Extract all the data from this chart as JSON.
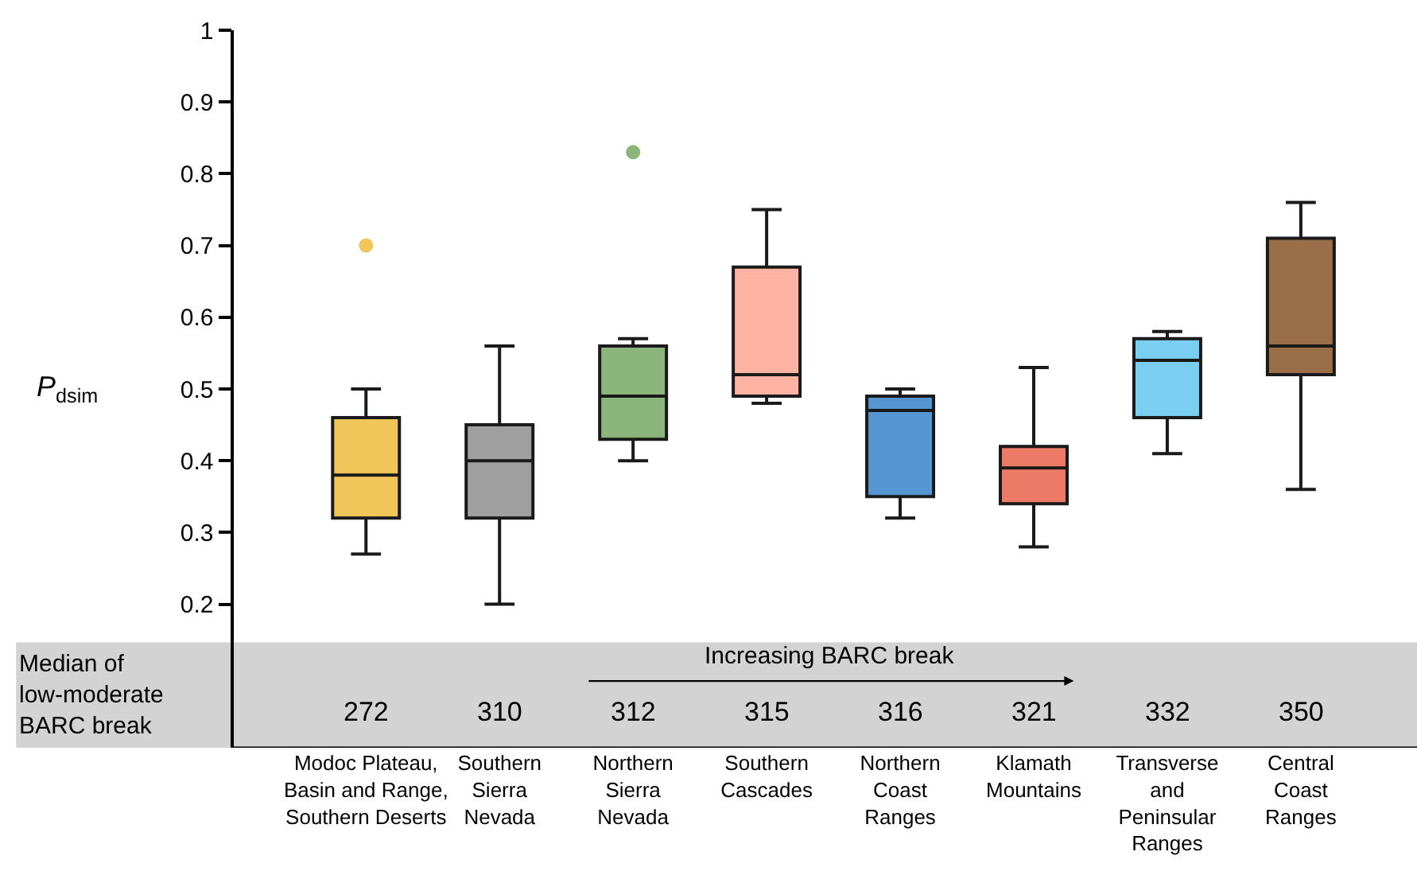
{
  "chart_data": {
    "type": "box",
    "ylabel": "P$_{dsim}$",
    "categories": [
      "Modoc Plateau,\nBasin and Range,\nSouthern Deserts",
      "Southern\nSierra\nNevada",
      "Northern\nSierra\nNevada",
      "Southern\nCascades",
      "Northern\nCoast\nRanges",
      "Klamath\nMountains",
      "Transverse\nand\nPeninsular\nRanges",
      "Central\nCoast\nRanges"
    ],
    "colors": [
      "#f0c55a",
      "#a0a0a0",
      "#8bb57a",
      "#ffb3a3",
      "#5596d0",
      "#ee7a68",
      "#7acff0",
      "#9a6e48"
    ],
    "boxes": [
      {
        "low": 0.27,
        "q1": 0.32,
        "median": 0.38,
        "q3": 0.46,
        "high": 0.5,
        "outliers": [
          0.7
        ]
      },
      {
        "low": 0.2,
        "q1": 0.32,
        "median": 0.4,
        "q3": 0.45,
        "high": 0.56
      },
      {
        "low": 0.4,
        "q1": 0.43,
        "median": 0.49,
        "q3": 0.56,
        "high": 0.57,
        "outliers": [
          0.83
        ]
      },
      {
        "low": 0.48,
        "q1": 0.49,
        "median": 0.52,
        "q3": 0.67,
        "high": 0.75
      },
      {
        "low": 0.32,
        "q1": 0.35,
        "median": 0.47,
        "q3": 0.49,
        "high": 0.5
      },
      {
        "low": 0.28,
        "q1": 0.34,
        "median": 0.39,
        "q3": 0.42,
        "high": 0.53
      },
      {
        "low": 0.41,
        "q1": 0.46,
        "median": 0.54,
        "q3": 0.57,
        "high": 0.58
      },
      {
        "low": 0.36,
        "q1": 0.52,
        "median": 0.56,
        "q3": 0.71,
        "high": 0.76
      }
    ],
    "ylim": [
      0,
      1
    ],
    "yticks": [
      0.2,
      0.3,
      0.4,
      0.5,
      0.6,
      0.7,
      0.8,
      0.9,
      1
    ],
    "bands": [
      {
        "axis": "y",
        "from": 0,
        "to": 0.147,
        "color": "#d3d3d3"
      }
    ],
    "annotations": [
      "Median of\nlow-moderate\nBARC break",
      "Increasing BARC break",
      "272",
      "310",
      "312",
      "315",
      "316",
      "321",
      "332",
      "350"
    ],
    "grid": false
  }
}
